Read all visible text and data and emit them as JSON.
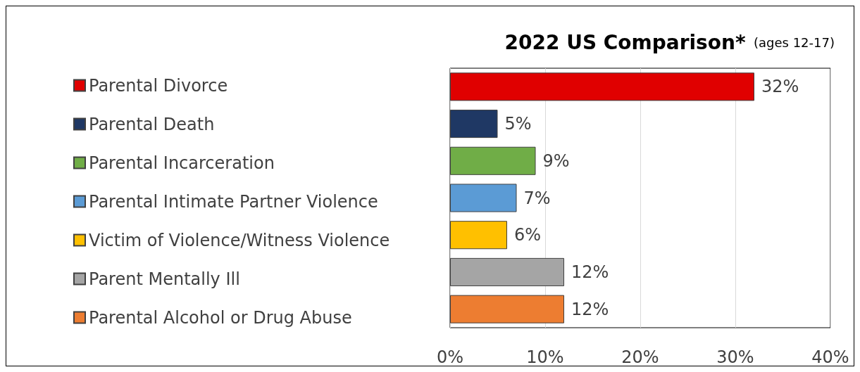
{
  "chart_data": {
    "type": "bar",
    "orientation": "horizontal",
    "stacked": true,
    "title": "2022 US Comparison*",
    "subtitle": "(ages 12-17)",
    "categories": [
      null,
      null,
      null,
      null,
      null,
      null,
      null
    ],
    "series": [
      {
        "name": "Parental Divorce",
        "color": "#e00000",
        "values": [
          32,
          null,
          null,
          null,
          null,
          null,
          null
        ],
        "value_labels": [
          "32%",
          null,
          null,
          null,
          null,
          null,
          null
        ]
      },
      {
        "name": "Parental Death",
        "color": "#1f3864",
        "values": [
          null,
          5,
          null,
          null,
          null,
          null,
          null
        ],
        "value_labels": [
          null,
          "5%",
          null,
          null,
          null,
          null,
          null
        ]
      },
      {
        "name": "Parental Incarceration",
        "color": "#70ad47",
        "values": [
          null,
          null,
          9,
          null,
          null,
          null,
          null
        ],
        "value_labels": [
          null,
          null,
          "9%",
          null,
          null,
          null,
          null
        ]
      },
      {
        "name": "Parental Intimate Partner Violence",
        "color": "#5b9bd5",
        "values": [
          null,
          null,
          null,
          7,
          null,
          null,
          null
        ],
        "value_labels": [
          null,
          null,
          null,
          "7%",
          null,
          null,
          null
        ]
      },
      {
        "name": "Victim of Violence/Witness Violence",
        "color": "#ffc000",
        "values": [
          null,
          null,
          null,
          null,
          6,
          null,
          null
        ],
        "value_labels": [
          null,
          null,
          null,
          null,
          "6%",
          null,
          null
        ]
      },
      {
        "name": "Parent Mentally Ill",
        "color": "#a5a5a5",
        "values": [
          null,
          null,
          null,
          null,
          null,
          12,
          null
        ],
        "value_labels": [
          null,
          null,
          null,
          null,
          null,
          "12%",
          null
        ]
      },
      {
        "name": "Parental Alcohol or Drug Abuse",
        "color": "#ed7d31",
        "values": [
          null,
          null,
          null,
          null,
          null,
          null,
          12
        ],
        "value_labels": [
          null,
          null,
          null,
          null,
          null,
          null,
          "12%"
        ]
      }
    ],
    "xlim": [
      0,
      40
    ],
    "xticks": [
      {
        "value": 0,
        "label": "0%"
      },
      {
        "value": 10,
        "label": "10%"
      },
      {
        "value": 20,
        "label": "20%"
      },
      {
        "value": 30,
        "label": "30%"
      },
      {
        "value": 40,
        "label": "40%"
      }
    ],
    "grid": "x",
    "legend": "left",
    "tick_labels": "x"
  }
}
